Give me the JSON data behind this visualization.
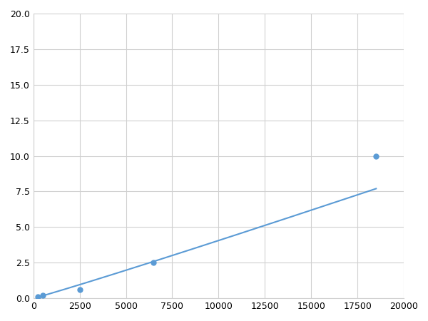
{
  "x_data": [
    250,
    500,
    2500,
    6500,
    18500
  ],
  "y_data": [
    0.1,
    0.2,
    0.6,
    2.5,
    10.0
  ],
  "xlim": [
    0,
    20000
  ],
  "ylim": [
    0,
    20.0
  ],
  "xticks": [
    0,
    2500,
    5000,
    7500,
    10000,
    12500,
    15000,
    17500,
    20000
  ],
  "yticks": [
    0.0,
    2.5,
    5.0,
    7.5,
    10.0,
    12.5,
    15.0,
    17.5,
    20.0
  ],
  "xtick_labels": [
    "0",
    "2500",
    "5000",
    "7500",
    "10000",
    "12500",
    "15000",
    "17500",
    "20000"
  ],
  "ytick_labels": [
    "0.0",
    "2.5",
    "5.0",
    "7.5",
    "10.0",
    "12.5",
    "15.0",
    "17.5",
    "20.0"
  ],
  "line_color": "#5b9bd5",
  "marker_color": "#5b9bd5",
  "background_color": "#ffffff",
  "grid_color": "#d0d0d0",
  "figure_bg": "#ffffff"
}
